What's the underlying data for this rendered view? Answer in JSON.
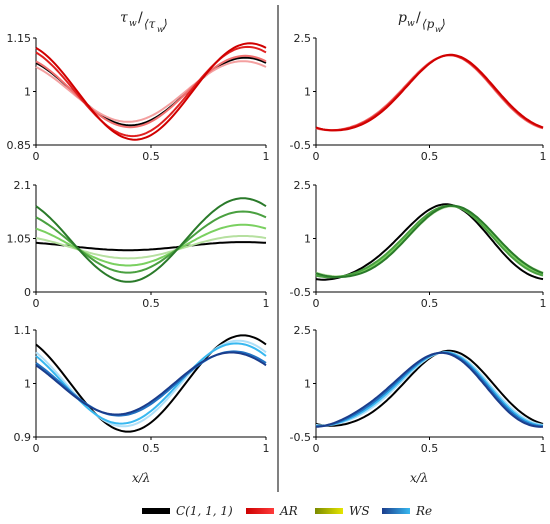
{
  "headers": {
    "left": {
      "sym": "τ",
      "sub": "w",
      "den": "⟨τ",
      "den_sub": "w",
      "den_close": "⟩"
    },
    "right": {
      "sym": "p",
      "sub": "w",
      "den": "⟨p",
      "den_sub": "w",
      "den_close": "⟩"
    }
  },
  "xlabel": "x/λ",
  "legend": [
    {
      "label": "C(1, 1, 1)",
      "colors": [
        "#000000",
        "#000000"
      ]
    },
    {
      "label": "AR",
      "colors": [
        "#cc0000",
        "#ff3b3b"
      ]
    },
    {
      "label": "WS",
      "colors": [
        "#7a8a00",
        "#e6e600"
      ]
    },
    {
      "label": "Re",
      "colors": [
        "#1b3d8c",
        "#38b8f0"
      ]
    }
  ],
  "chart_data": [
    {
      "id": "tau-ar",
      "type": "line",
      "xlim": [
        0,
        1
      ],
      "ylim": [
        0.85,
        1.15
      ],
      "yticks": [
        0.85,
        1,
        1.15
      ],
      "ytick_labels": [
        "0.85",
        "1",
        "1.15"
      ],
      "xticks": [
        0,
        0.5,
        1
      ],
      "xtick_labels": [
        "0",
        "0.5",
        "1"
      ],
      "series": [
        {
          "color": "#000000",
          "mean": 1,
          "amp": 0.095,
          "phase": 0.01,
          "h2": 0.0
        },
        {
          "color": "#f4a0a0",
          "mean": 1,
          "amp": 0.085,
          "phase": 0.0,
          "h2": 0.0
        },
        {
          "color": "#f07070",
          "mean": 1,
          "amp": 0.1,
          "phase": 0.01,
          "h2": 0.0
        },
        {
          "color": "#e02020",
          "mean": 1,
          "amp": 0.125,
          "phase": 0.02,
          "h2": 0.0
        },
        {
          "color": "#d00000",
          "mean": 1,
          "amp": 0.135,
          "phase": 0.03,
          "h2": 0.0
        }
      ]
    },
    {
      "id": "p-ar",
      "type": "line",
      "xlim": [
        0,
        1
      ],
      "ylim": [
        -0.5,
        2.5
      ],
      "yticks": [
        -0.5,
        1,
        2.5
      ],
      "ytick_labels": [
        "-0.5",
        "1",
        "2.5"
      ],
      "xticks": [
        0,
        0.5,
        1
      ],
      "xtick_labels": [
        "0",
        "0.5",
        "1"
      ],
      "series": [
        {
          "color": "#f07070",
          "mean": 0.85,
          "amp": 1.05,
          "phase": 0.0,
          "h2": 0.0
        },
        {
          "color": "#e02020",
          "mean": 0.85,
          "amp": 1.05,
          "phase": 0.005,
          "h2": 0.0
        },
        {
          "color": "#d00000",
          "mean": 0.85,
          "amp": 1.06,
          "phase": 0.01,
          "h2": 0.0
        }
      ]
    },
    {
      "id": "tau-ws",
      "type": "line",
      "xlim": [
        0,
        1
      ],
      "ylim": [
        0,
        2.1
      ],
      "yticks": [
        0,
        1.05,
        2.1
      ],
      "ytick_labels": [
        "0",
        "1.05",
        "2.1"
      ],
      "xticks": [
        0,
        0.5,
        1
      ],
      "xtick_labels": [
        "0",
        "0.5",
        "1"
      ],
      "series": [
        {
          "color": "#000000",
          "mean": 0.9,
          "amp": 0.08,
          "phase": 0.0,
          "h2": 0.0
        },
        {
          "color": "#b6e0a0",
          "mean": 0.88,
          "amp": 0.22,
          "phase": 0.0,
          "h2": 0.0
        },
        {
          "color": "#7ad060",
          "mean": 0.92,
          "amp": 0.4,
          "phase": 0.0,
          "h2": 0.0
        },
        {
          "color": "#4aa040",
          "mean": 0.98,
          "amp": 0.6,
          "phase": 0.0,
          "h2": 0.0
        },
        {
          "color": "#2a7a2a",
          "mean": 1.02,
          "amp": 0.82,
          "phase": 0.0,
          "h2": 0.0
        }
      ]
    },
    {
      "id": "p-ws",
      "type": "line",
      "xlim": [
        0,
        1
      ],
      "ylim": [
        -0.5,
        2.5
      ],
      "yticks": [
        -0.5,
        1,
        2.5
      ],
      "ytick_labels": [
        "-0.5",
        "1",
        "2.5"
      ],
      "xticks": [
        0,
        0.5,
        1
      ],
      "xtick_labels": [
        "0",
        "0.5",
        "1"
      ],
      "series": [
        {
          "color": "#000000",
          "mean": 0.8,
          "amp": 1.05,
          "phase": -0.02,
          "h2": 0.0
        },
        {
          "color": "#b6e0a0",
          "mean": 0.8,
          "amp": 0.98,
          "phase": 0.02,
          "h2": 0.0
        },
        {
          "color": "#7ad060",
          "mean": 0.8,
          "amp": 1.0,
          "phase": 0.01,
          "h2": 0.0
        },
        {
          "color": "#4aa040",
          "mean": 0.8,
          "amp": 1.0,
          "phase": 0.0,
          "h2": 0.0
        },
        {
          "color": "#2a7a2a",
          "mean": 0.8,
          "amp": 1.0,
          "phase": 0.02,
          "h2": 0.0
        }
      ]
    },
    {
      "id": "tau-re",
      "type": "line",
      "xlim": [
        0,
        1
      ],
      "ylim": [
        0.9,
        1.1
      ],
      "yticks": [
        0.9,
        1,
        1.1
      ],
      "ytick_labels": [
        "0.9",
        "1",
        "1.1"
      ],
      "xticks": [
        0,
        0.5,
        1
      ],
      "xtick_labels": [
        "0",
        "0.5",
        "1"
      ],
      "series": [
        {
          "color": "#000000",
          "mean": 1,
          "amp": 0.09,
          "phase": 0.0,
          "h2": 0.0
        },
        {
          "color": "#b0e0f8",
          "mean": 1,
          "amp": 0.08,
          "phase": -0.02,
          "h2": 0.0
        },
        {
          "color": "#38b8f0",
          "mean": 1,
          "amp": 0.075,
          "phase": -0.03,
          "h2": 0.0
        },
        {
          "color": "#2070c0",
          "mean": 1,
          "amp": 0.06,
          "phase": -0.04,
          "h2": 0.0
        },
        {
          "color": "#1b3d8c",
          "mean": 1,
          "amp": 0.058,
          "phase": -0.05,
          "h2": 0.0
        }
      ]
    },
    {
      "id": "p-re",
      "type": "line",
      "xlim": [
        0,
        1
      ],
      "ylim": [
        -0.5,
        2.5
      ],
      "yticks": [
        -0.5,
        1,
        2.5
      ],
      "ytick_labels": [
        "-0.5",
        "1",
        "2.5"
      ],
      "xticks": [
        0,
        0.5,
        1
      ],
      "xtick_labels": [
        "0",
        "0.5",
        "1"
      ],
      "series": [
        {
          "color": "#000000",
          "mean": 0.75,
          "amp": 1.05,
          "phase": 0.0,
          "h2": 0.0
        },
        {
          "color": "#b0e0f8",
          "mean": 0.75,
          "amp": 1.02,
          "phase": -0.02,
          "h2": 0.0
        },
        {
          "color": "#38b8f0",
          "mean": 0.75,
          "amp": 1.02,
          "phase": -0.03,
          "h2": 0.0
        },
        {
          "color": "#2070c0",
          "mean": 0.75,
          "amp": 1.02,
          "phase": -0.04,
          "h2": 0.0
        },
        {
          "color": "#1b3d8c",
          "mean": 0.75,
          "amp": 1.02,
          "phase": -0.05,
          "h2": 0.0
        }
      ]
    }
  ]
}
